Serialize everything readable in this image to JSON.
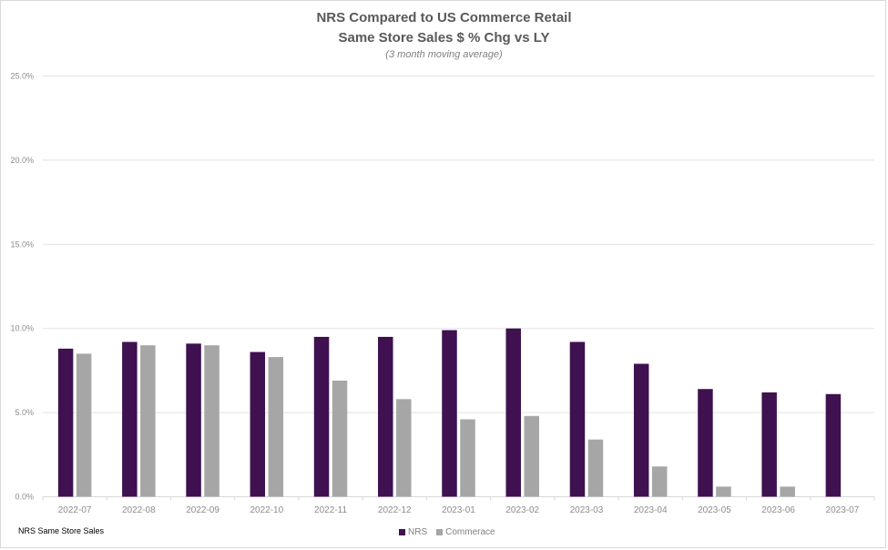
{
  "chart_data": {
    "type": "bar",
    "title": "NRS Compared to US Commerce Retail",
    "subtitle": "Same Store Sales $ % Chg vs LY",
    "note": "(3 month moving average)",
    "xlabel": "",
    "ylabel": "",
    "ylim": [
      0,
      25
    ],
    "yticks": [
      "0.0%",
      "5.0%",
      "10.0%",
      "15.0%",
      "20.0%",
      "25.0%"
    ],
    "ytick_values": [
      0,
      5,
      10,
      15,
      20,
      25
    ],
    "grid": true,
    "legend_position": "bottom",
    "categories": [
      "2022-07",
      "2022-08",
      "2022-09",
      "2022-10",
      "2022-11",
      "2022-12",
      "2023-01",
      "2023-02",
      "2023-03",
      "2023-04",
      "2023-05",
      "2023-06",
      "2023-07"
    ],
    "series": [
      {
        "name": "NRS",
        "color": "#3f1150",
        "values": [
          8.8,
          9.2,
          9.1,
          8.6,
          9.5,
          9.5,
          9.9,
          10.0,
          9.2,
          7.9,
          6.4,
          6.2,
          6.1
        ]
      },
      {
        "name": "Commerace",
        "color": "#a6a6a6",
        "values": [
          8.5,
          9.0,
          9.0,
          8.3,
          6.9,
          5.8,
          4.6,
          4.8,
          3.4,
          1.8,
          0.6,
          0.6,
          null
        ]
      }
    ]
  },
  "footnote": "NRS Same Store Sales"
}
